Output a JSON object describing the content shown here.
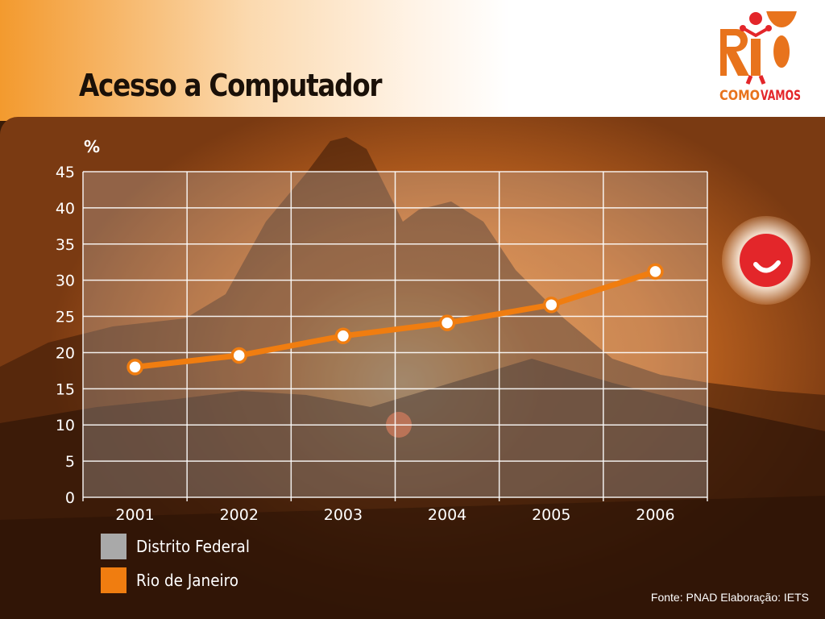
{
  "slide": {
    "title": "Acesso a Computador",
    "source": "Fonte: PNAD Elaboração: IETS",
    "logo": {
      "word": "RIO",
      "tagline_a": "COMO",
      "tagline_b": "VAMOS",
      "color": "#e8731c",
      "accent": "#e3262a"
    }
  },
  "chart_data": {
    "type": "line",
    "title": "Acesso a Computador",
    "ylabel": "%",
    "xlabel": "",
    "categories": [
      "2001",
      "2002",
      "2003",
      "2004",
      "2005",
      "2006"
    ],
    "ylim": [
      0,
      45
    ],
    "yticks": [
      "0",
      "5",
      "10",
      "15",
      "20",
      "25",
      "30",
      "35",
      "40",
      "45"
    ],
    "grid": true,
    "legend_position": "bottom-left",
    "legend": [
      {
        "name": "Distrito Federal",
        "color": "#a9a9a9"
      },
      {
        "name": "Rio de Janeiro",
        "color": "#f07d10"
      }
    ],
    "series": [
      {
        "name": "Rio de Janeiro",
        "color": "#f07d10",
        "values": [
          18.0,
          19.6,
          22.3,
          24.1,
          26.6,
          31.2
        ]
      }
    ]
  }
}
